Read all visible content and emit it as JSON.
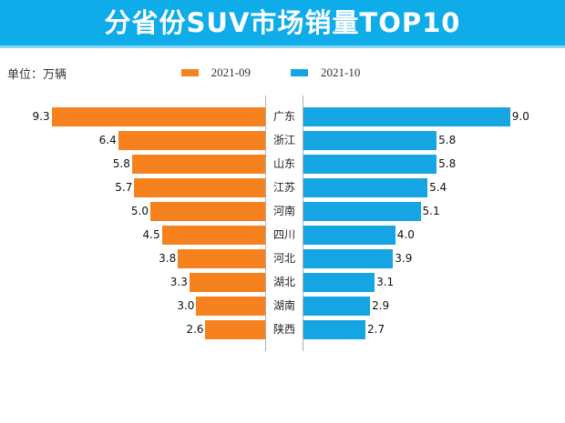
{
  "title": "分省份SUV市场销量TOP10",
  "unit_label": "单位：万辆",
  "legend": [
    {
      "label": "2021-09",
      "color": "#F5821E"
    },
    {
      "label": "2021-10",
      "color": "#15A5E2"
    }
  ],
  "colors": {
    "banner": "#0EACE9",
    "banner_edge": "#87D7F4",
    "orange_bar": "#F5821E",
    "blue_bar": "#15A5E2",
    "axis_line": "#AFAFAF"
  },
  "chart_data": {
    "type": "bar",
    "subtype": "tornado",
    "title": "分省份SUV市场销量TOP10",
    "unit": "万辆",
    "categories": [
      "广东",
      "浙江",
      "山东",
      "江苏",
      "河南",
      "四川",
      "河北",
      "湖北",
      "湖南",
      "陕西"
    ],
    "series": [
      {
        "name": "2021-09",
        "side": "left",
        "color": "#F5821E",
        "values": [
          9.3,
          6.4,
          5.8,
          5.7,
          5.0,
          4.5,
          3.8,
          3.3,
          3.0,
          2.6
        ]
      },
      {
        "name": "2021-10",
        "side": "right",
        "color": "#15A5E2",
        "values": [
          9.0,
          5.8,
          5.8,
          5.4,
          5.1,
          4.0,
          3.9,
          3.1,
          2.9,
          2.7
        ]
      }
    ],
    "value_labels": "one-decimal",
    "xlim": [
      0,
      9.3
    ],
    "grid": false,
    "legend_position": "top-center"
  }
}
